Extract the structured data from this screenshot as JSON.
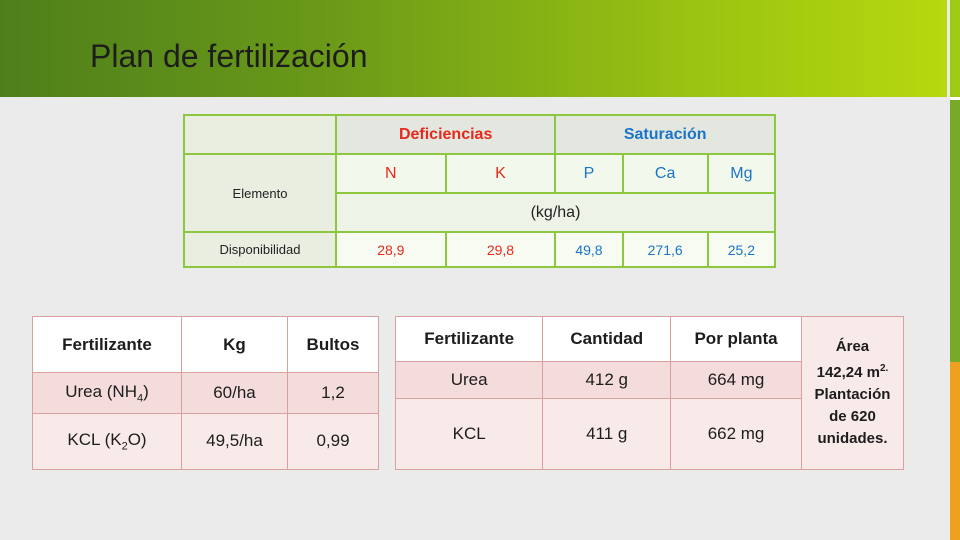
{
  "title": "Plan de fertilización",
  "colors": {
    "banner_start": "#4e7f1b",
    "banner_end": "#b6d80e",
    "accent_green": "#8dc63f",
    "red": "#e52a1c",
    "blue": "#1a75c8",
    "accent_orange": "#f0a020"
  },
  "nutrients": {
    "group_deficiencias": "Deficiencias",
    "group_saturacion": "Saturación",
    "row_elemento": "Elemento",
    "elements": [
      "N",
      "K",
      "P",
      "Ca",
      "Mg"
    ],
    "unit": "(kg/ha)",
    "row_disponibilidad": "Disponibilidad",
    "values": [
      "28,9",
      "29,8",
      "49,8",
      "271,6",
      "25,2"
    ]
  },
  "fertilizers": {
    "headers": [
      "Fertilizante",
      "Kg",
      "Bultos"
    ],
    "rows": [
      {
        "name": "Urea (NH",
        "sub": "4",
        "close": ")",
        "kg": "60/ha",
        "bultos": "1,2"
      },
      {
        "name": "KCL (K",
        "sub": "2",
        "close": "O)",
        "kg": "49,5/ha",
        "bultos": "0,99"
      }
    ]
  },
  "application": {
    "headers": [
      "Fertilizante",
      "Cantidad",
      "Por planta"
    ],
    "rows": [
      {
        "name": "Urea",
        "cantidad": "412 g",
        "por_planta": "664 mg"
      },
      {
        "name": "KCL",
        "cantidad": "411 g",
        "por_planta": "662 mg"
      }
    ],
    "note": {
      "area_label": "Área",
      "area_value": "142,24 m",
      "area_sup": "2.",
      "plantacion": "Plantación",
      "de": "de 620",
      "unidades": "unidades."
    }
  }
}
